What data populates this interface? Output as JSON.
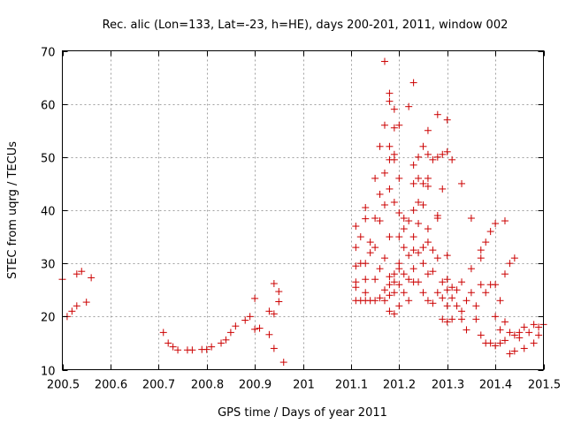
{
  "chart_data": {
    "type": "scatter",
    "title": "Rec. alic (Lon=133, Lat=-23, h=HE), days 200-201, 2011, window 002",
    "xlabel": "GPS time / Days of year 2011",
    "ylabel": "STEC from uqrg / TECUs",
    "xlim": [
      200.5,
      201.5
    ],
    "ylim": [
      10,
      70
    ],
    "xticks": [
      200.5,
      200.6,
      200.7,
      200.8,
      200.9,
      201.0,
      201.1,
      201.2,
      201.3,
      201.4,
      201.5
    ],
    "xtick_labels": [
      "200.5",
      "200.6",
      "200.7",
      "200.8",
      "200.9",
      "201",
      "201.1",
      "201.2",
      "201.3",
      "201.4",
      "201.5"
    ],
    "yticks": [
      10,
      20,
      30,
      40,
      50,
      60,
      70
    ],
    "ytick_labels": [
      "10",
      "20",
      "30",
      "40",
      "50",
      "60",
      "70"
    ],
    "grid": true,
    "marker_color": "#cc0000",
    "series": [
      {
        "name": "STEC",
        "marker": "+",
        "points": [
          [
            200.5,
            27.0
          ],
          [
            200.51,
            20.0
          ],
          [
            200.52,
            21.0
          ],
          [
            200.53,
            22.0
          ],
          [
            200.53,
            28.0
          ],
          [
            200.54,
            28.5
          ],
          [
            200.55,
            22.7
          ],
          [
            200.56,
            27.3
          ],
          [
            200.71,
            17.0
          ],
          [
            200.72,
            15.0
          ],
          [
            200.73,
            14.3
          ],
          [
            200.74,
            13.7
          ],
          [
            200.76,
            13.7
          ],
          [
            200.77,
            13.7
          ],
          [
            200.79,
            13.8
          ],
          [
            200.8,
            13.8
          ],
          [
            200.81,
            14.3
          ],
          [
            200.83,
            15.0
          ],
          [
            200.84,
            15.6
          ],
          [
            200.85,
            17.0
          ],
          [
            200.86,
            18.2
          ],
          [
            200.88,
            19.3
          ],
          [
            200.89,
            20.0
          ],
          [
            200.9,
            23.4
          ],
          [
            200.9,
            17.6
          ],
          [
            200.91,
            17.8
          ],
          [
            200.93,
            16.6
          ],
          [
            200.93,
            21.0
          ],
          [
            200.94,
            20.5
          ],
          [
            200.94,
            26.2
          ],
          [
            200.94,
            14.0
          ],
          [
            200.95,
            24.7
          ],
          [
            200.95,
            22.8
          ],
          [
            200.96,
            11.4
          ],
          [
            201.11,
            37.0
          ],
          [
            201.11,
            33.0
          ],
          [
            201.11,
            29.5
          ],
          [
            201.11,
            26.5
          ],
          [
            201.11,
            25.5
          ],
          [
            201.11,
            23.0
          ],
          [
            201.12,
            35.0
          ],
          [
            201.12,
            30.0
          ],
          [
            201.12,
            23.0
          ],
          [
            201.13,
            40.5
          ],
          [
            201.13,
            38.4
          ],
          [
            201.13,
            30.0
          ],
          [
            201.13,
            27.0
          ],
          [
            201.13,
            24.5
          ],
          [
            201.13,
            23.0
          ],
          [
            201.14,
            34.0
          ],
          [
            201.14,
            32.0
          ],
          [
            201.14,
            23.0
          ],
          [
            201.15,
            46.0
          ],
          [
            201.15,
            38.5
          ],
          [
            201.15,
            33.0
          ],
          [
            201.15,
            27.0
          ],
          [
            201.15,
            23.0
          ],
          [
            201.16,
            52.0
          ],
          [
            201.16,
            43.0
          ],
          [
            201.16,
            38.0
          ],
          [
            201.16,
            29.0
          ],
          [
            201.16,
            23.5
          ],
          [
            201.17,
            68.0
          ],
          [
            201.17,
            56.0
          ],
          [
            201.17,
            47.0
          ],
          [
            201.17,
            41.0
          ],
          [
            201.17,
            31.0
          ],
          [
            201.17,
            25.0
          ],
          [
            201.17,
            23.0
          ],
          [
            201.18,
            62.0
          ],
          [
            201.18,
            60.5
          ],
          [
            201.18,
            52.0
          ],
          [
            201.18,
            49.5
          ],
          [
            201.18,
            44.0
          ],
          [
            201.18,
            35.0
          ],
          [
            201.18,
            27.5
          ],
          [
            201.18,
            26.0
          ],
          [
            201.18,
            24.0
          ],
          [
            201.18,
            21.0
          ],
          [
            201.19,
            59.0
          ],
          [
            201.19,
            55.5
          ],
          [
            201.19,
            50.5
          ],
          [
            201.19,
            49.5
          ],
          [
            201.19,
            41.5
          ],
          [
            201.19,
            28.0
          ],
          [
            201.19,
            26.5
          ],
          [
            201.19,
            24.5
          ],
          [
            201.19,
            20.5
          ],
          [
            201.2,
            56.0
          ],
          [
            201.2,
            46.0
          ],
          [
            201.2,
            39.5
          ],
          [
            201.2,
            35.0
          ],
          [
            201.2,
            30.0
          ],
          [
            201.2,
            29.0
          ],
          [
            201.2,
            26.0
          ],
          [
            201.2,
            22.0
          ],
          [
            201.21,
            38.5
          ],
          [
            201.21,
            36.5
          ],
          [
            201.21,
            33.0
          ],
          [
            201.21,
            28.0
          ],
          [
            201.21,
            24.5
          ],
          [
            201.22,
            59.5
          ],
          [
            201.22,
            38.0
          ],
          [
            201.22,
            31.5
          ],
          [
            201.22,
            27.0
          ],
          [
            201.22,
            23.0
          ],
          [
            201.23,
            64.0
          ],
          [
            201.23,
            48.5
          ],
          [
            201.23,
            45.0
          ],
          [
            201.23,
            40.0
          ],
          [
            201.23,
            35.0
          ],
          [
            201.23,
            32.5
          ],
          [
            201.23,
            29.0
          ],
          [
            201.23,
            26.5
          ],
          [
            201.24,
            50.0
          ],
          [
            201.24,
            46.0
          ],
          [
            201.24,
            41.5
          ],
          [
            201.24,
            37.5
          ],
          [
            201.24,
            32.0
          ],
          [
            201.24,
            26.5
          ],
          [
            201.25,
            52.0
          ],
          [
            201.25,
            45.0
          ],
          [
            201.25,
            41.0
          ],
          [
            201.25,
            33.0
          ],
          [
            201.25,
            30.0
          ],
          [
            201.25,
            24.5
          ],
          [
            201.26,
            55.0
          ],
          [
            201.26,
            50.5
          ],
          [
            201.26,
            46.0
          ],
          [
            201.26,
            44.5
          ],
          [
            201.26,
            36.5
          ],
          [
            201.26,
            34.0
          ],
          [
            201.26,
            28.0
          ],
          [
            201.26,
            23.0
          ],
          [
            201.27,
            49.5
          ],
          [
            201.27,
            32.5
          ],
          [
            201.27,
            28.5
          ],
          [
            201.27,
            22.5
          ],
          [
            201.28,
            58.0
          ],
          [
            201.28,
            50.0
          ],
          [
            201.28,
            39.0
          ],
          [
            201.28,
            38.5
          ],
          [
            201.28,
            31.0
          ],
          [
            201.28,
            24.5
          ],
          [
            201.29,
            50.5
          ],
          [
            201.29,
            44.0
          ],
          [
            201.29,
            26.5
          ],
          [
            201.29,
            23.5
          ],
          [
            201.29,
            19.5
          ],
          [
            201.3,
            57.0
          ],
          [
            201.3,
            51.0
          ],
          [
            201.3,
            31.5
          ],
          [
            201.3,
            27.0
          ],
          [
            201.3,
            25.0
          ],
          [
            201.3,
            22.0
          ],
          [
            201.3,
            19.0
          ],
          [
            201.31,
            49.5
          ],
          [
            201.31,
            25.5
          ],
          [
            201.31,
            23.5
          ],
          [
            201.31,
            19.5
          ],
          [
            201.32,
            25.0
          ],
          [
            201.32,
            22.0
          ],
          [
            201.33,
            45.0
          ],
          [
            201.33,
            26.5
          ],
          [
            201.33,
            21.0
          ],
          [
            201.33,
            19.5
          ],
          [
            201.34,
            23.0
          ],
          [
            201.34,
            17.5
          ],
          [
            201.35,
            38.5
          ],
          [
            201.35,
            29.0
          ],
          [
            201.35,
            24.5
          ],
          [
            201.36,
            22.0
          ],
          [
            201.36,
            19.5
          ],
          [
            201.37,
            32.5
          ],
          [
            201.37,
            31.0
          ],
          [
            201.37,
            26.0
          ],
          [
            201.37,
            16.5
          ],
          [
            201.38,
            34.0
          ],
          [
            201.38,
            24.5
          ],
          [
            201.38,
            15.0
          ],
          [
            201.39,
            36.0
          ],
          [
            201.39,
            26.0
          ],
          [
            201.39,
            15.0
          ],
          [
            201.4,
            37.5
          ],
          [
            201.4,
            26.0
          ],
          [
            201.4,
            20.0
          ],
          [
            201.4,
            14.5
          ],
          [
            201.41,
            23.0
          ],
          [
            201.41,
            15.0
          ],
          [
            201.41,
            17.5
          ],
          [
            201.42,
            38.0
          ],
          [
            201.42,
            28.0
          ],
          [
            201.42,
            19.0
          ],
          [
            201.42,
            15.5
          ],
          [
            201.43,
            30.0
          ],
          [
            201.43,
            17.0
          ],
          [
            201.43,
            13.0
          ],
          [
            201.44,
            31.0
          ],
          [
            201.44,
            16.5
          ],
          [
            201.44,
            13.5
          ],
          [
            201.45,
            17.0
          ],
          [
            201.45,
            16.0
          ],
          [
            201.46,
            18.0
          ],
          [
            201.46,
            14.0
          ],
          [
            201.47,
            17.0
          ],
          [
            201.48,
            18.5
          ],
          [
            201.48,
            15.0
          ],
          [
            201.49,
            18.0
          ],
          [
            201.49,
            16.5
          ],
          [
            201.5,
            18.5
          ]
        ]
      }
    ]
  }
}
